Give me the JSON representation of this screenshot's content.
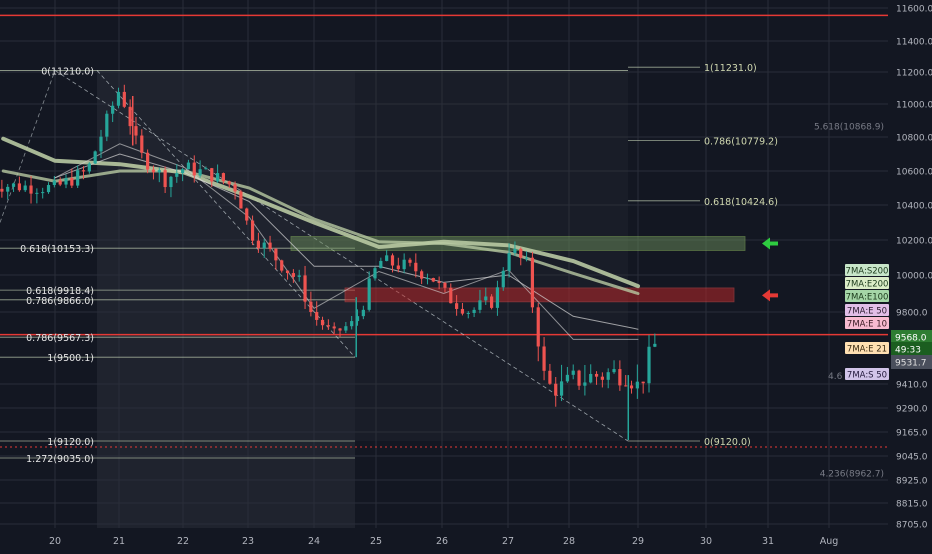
{
  "chart_data": {
    "type": "candlestick",
    "title": "",
    "colors": {
      "background": "#131722",
      "up": "#26a69a",
      "down": "#ef5350",
      "fib_line": "#c8d6b9",
      "fib_text": "#d0d8b0",
      "fib_text_secondary": "#e6e6e6",
      "resistance_line": "#e53935",
      "green_zone": "#6b8e5a",
      "red_zone": "#c62828",
      "ma_thick": "#b8c9a2",
      "ma_thin": "#d8d8d8",
      "arrow_green": "#2ecc40",
      "arrow_red": "#e53935",
      "axis_text": "#b2b5be"
    },
    "y_axis": {
      "scale": "linear",
      "ylim": [
        8640,
        11680
      ],
      "ticks": [
        "11600.0",
        "11400.0",
        "11200.0",
        "11000.0",
        "10800.0",
        "10600.0",
        "10400.0",
        "10200.0",
        "10000.0",
        "9800.0",
        "9410.0",
        "9290.0",
        "9165.0",
        "9045.0",
        "8925.0",
        "8815.0",
        "8705.0"
      ]
    },
    "x_axis": {
      "ticks": [
        "20",
        "21",
        "22",
        "23",
        "24",
        "25",
        "26",
        "27",
        "28",
        "29",
        "30",
        "31",
        "Aug"
      ]
    },
    "horizontal_lines": [
      {
        "y": 11555,
        "style": "solid",
        "color_key": "resistance_line"
      },
      {
        "y": 9590,
        "style": "solid",
        "color_key": "resistance_line"
      },
      {
        "y": 9090,
        "style": "dotted",
        "color_key": "resistance_line"
      }
    ],
    "fib_levels": [
      {
        "label": "0(11210.0)",
        "y": 11210,
        "side": "left"
      },
      {
        "label": "1(11231.0)",
        "y": 11231,
        "side": "right"
      },
      {
        "label": "0.786(10779.2)",
        "y": 10779.2,
        "side": "right"
      },
      {
        "label": "0.618(10424.6)",
        "y": 10424.6,
        "side": "right"
      },
      {
        "label": "0.618(10153.3)",
        "y": 10153.3,
        "side": "left"
      },
      {
        "label": "0.618(9918.4)",
        "y": 9918.4,
        "side": "left"
      },
      {
        "label": "0.786(9866.0)",
        "y": 9866.0,
        "side": "left"
      },
      {
        "label": "0.786(9567.3)",
        "y": 9567.3,
        "side": "left"
      },
      {
        "label": "1(9500.1)",
        "y": 9500.1,
        "side": "left"
      },
      {
        "label": "1(9120.0)",
        "y": 9120,
        "side": "left"
      },
      {
        "label": "0(9120.0)",
        "y": 9120,
        "side": "right"
      },
      {
        "label": "1.272(9035.0)",
        "y": 9035,
        "side": "left"
      }
    ],
    "faint_labels": [
      "5.618(10868.9)",
      "4.236(8962.7)",
      "4.6"
    ],
    "zones": [
      {
        "name": "green-zone",
        "y_top": 10220,
        "y_bottom": 10140
      },
      {
        "name": "red-zone",
        "y_top": 9930,
        "y_bottom": 9855
      }
    ],
    "price_path": {
      "x": [
        "20",
        "20.5",
        "21",
        "21.3",
        "21.7",
        "22",
        "22.4",
        "22.8",
        "23",
        "23.4",
        "23.8",
        "24",
        "24.3",
        "24.6",
        "25",
        "25.4",
        "25.8",
        "26",
        "26.4",
        "26.8",
        "27",
        "27.3",
        "27.5",
        "27.7",
        "28",
        "28.4",
        "28.8",
        "29",
        "29.3"
      ],
      "y": [
        10500,
        10600,
        11100,
        10700,
        10550,
        10620,
        10580,
        10500,
        10250,
        10100,
        9950,
        9750,
        9600,
        9700,
        10080,
        10050,
        10000,
        9900,
        9800,
        9870,
        10160,
        10050,
        9450,
        9380,
        9420,
        9440,
        9450,
        9400,
        9560
      ]
    },
    "ma_series": [
      "7MA:S200",
      "7MA:E200",
      "7MA:E100",
      "7MA:E 50",
      "7MA:E 10",
      "7MA:E 21",
      "7MA:S 50"
    ],
    "price_labels": {
      "last_price": "9568.0",
      "countdown": "49:33",
      "indicator": "9531.7"
    }
  },
  "legend": [
    {
      "label": "7MA:S200",
      "bg": "#c8e6c9",
      "fg": "#1b3a1b"
    },
    {
      "label": "7MA:E200",
      "bg": "#dcedc8",
      "fg": "#1b3a1b"
    },
    {
      "label": "7MA:E100",
      "bg": "#a5d6a7",
      "fg": "#1b3a1b"
    },
    {
      "label": "7MA:E 50",
      "bg": "#e1bee7",
      "fg": "#2a1a2e"
    },
    {
      "label": "7MA:E 10",
      "bg": "#f8bbd0",
      "fg": "#3a1a22"
    },
    {
      "label": "7MA:E 21",
      "bg": "#ffe0b2",
      "fg": "#3a2a10"
    },
    {
      "label": "7MA:S 50",
      "bg": "#d1c4e9",
      "fg": "#21183a"
    }
  ]
}
